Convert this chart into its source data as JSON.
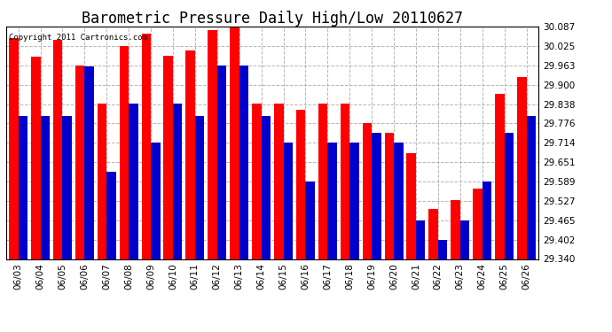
{
  "title": "Barometric Pressure Daily High/Low 20110627",
  "copyright": "Copyright 2011 Cartronics.com",
  "dates": [
    "06/03",
    "06/04",
    "06/05",
    "06/06",
    "06/07",
    "06/08",
    "06/09",
    "06/10",
    "06/11",
    "06/12",
    "06/13",
    "06/14",
    "06/15",
    "06/16",
    "06/17",
    "06/18",
    "06/19",
    "06/20",
    "06/21",
    "06/22",
    "06/23",
    "06/24",
    "06/25",
    "06/26"
  ],
  "highs": [
    30.05,
    29.99,
    30.045,
    29.963,
    29.838,
    30.025,
    30.063,
    29.993,
    30.01,
    30.075,
    30.087,
    29.838,
    29.838,
    29.82,
    29.838,
    29.838,
    29.776,
    29.745,
    29.68,
    29.5,
    29.53,
    29.565,
    29.872,
    29.925
  ],
  "lows": [
    29.8,
    29.8,
    29.8,
    29.96,
    29.62,
    29.838,
    29.714,
    29.838,
    29.8,
    29.963,
    29.963,
    29.8,
    29.714,
    29.59,
    29.714,
    29.714,
    29.745,
    29.714,
    29.465,
    29.402,
    29.465,
    29.59,
    29.745,
    29.8
  ],
  "ymin": 29.34,
  "ymax": 30.087,
  "yticks": [
    29.34,
    29.402,
    29.465,
    29.527,
    29.589,
    29.651,
    29.714,
    29.776,
    29.838,
    29.9,
    29.963,
    30.025,
    30.087
  ],
  "bar_width": 0.42,
  "high_color": "#ff0000",
  "low_color": "#0000cc",
  "bg_color": "#ffffff",
  "grid_color": "#aaaaaa",
  "title_fontsize": 12,
  "tick_fontsize": 7.5,
  "fig_width": 6.9,
  "fig_height": 3.75,
  "dpi": 100
}
